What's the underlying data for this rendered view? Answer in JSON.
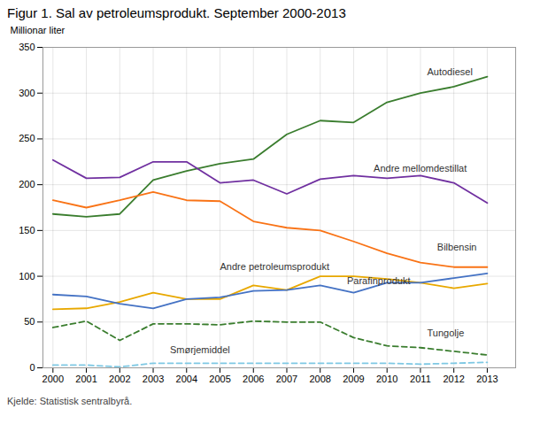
{
  "chart_data": {
    "type": "line",
    "title": "Figur 1. Sal av petroleumsprodukt. September 2000-2013",
    "ylabel": "Millionar liter",
    "caption": "Kjelde: Statistisk sentralbyrå.",
    "x": [
      2000,
      2001,
      2002,
      2003,
      2004,
      2005,
      2006,
      2007,
      2008,
      2009,
      2010,
      2011,
      2012,
      2013
    ],
    "series": [
      {
        "name": "Autodiesel",
        "color": "#3a7d2e",
        "line_style": "solid",
        "values": [
          168,
          165,
          168,
          205,
          215,
          223,
          228,
          255,
          270,
          268,
          290,
          300,
          307,
          318
        ]
      },
      {
        "name": "Andre mellomdestillat",
        "color": "#7030a0",
        "line_style": "solid",
        "values": [
          227,
          207,
          208,
          225,
          225,
          202,
          205,
          190,
          206,
          210,
          207,
          210,
          202,
          180
        ]
      },
      {
        "name": "Bilbensin",
        "color": "#f97316",
        "line_style": "solid",
        "values": [
          183,
          175,
          183,
          192,
          183,
          182,
          160,
          153,
          150,
          138,
          125,
          115,
          110,
          110
        ]
      },
      {
        "name": "Andre petroleumsprodukt",
        "color": "#e8a800",
        "line_style": "solid",
        "values": [
          64,
          65,
          72,
          82,
          75,
          75,
          90,
          85,
          100,
          100,
          97,
          93,
          87,
          92
        ]
      },
      {
        "name": "Parafinprodukt",
        "color": "#4472c4",
        "line_style": "solid",
        "values": [
          80,
          78,
          70,
          65,
          75,
          77,
          84,
          85,
          90,
          82,
          93,
          93,
          98,
          103
        ]
      },
      {
        "name": "Tungolje",
        "color": "#3a7d2e",
        "line_style": "dashed",
        "values": [
          44,
          51,
          30,
          48,
          48,
          47,
          51,
          50,
          50,
          33,
          24,
          22,
          18,
          14
        ]
      },
      {
        "name": "Smørjemiddel",
        "color": "#7ec8e3",
        "line_style": "dashed",
        "values": [
          3,
          3,
          1,
          5,
          5,
          5,
          5,
          5,
          5,
          5,
          5,
          4,
          5,
          6
        ]
      }
    ],
    "annotations": [
      {
        "text": "Autodiesel",
        "x": 2011.2,
        "y": 323
      },
      {
        "text": "Andre mellomdestillat",
        "x": 2009.6,
        "y": 218
      },
      {
        "text": "Bilbensin",
        "x": 2011.5,
        "y": 132
      },
      {
        "text": "Andre petroleumsprodukt",
        "x": 2005.0,
        "y": 110
      },
      {
        "text": "Parafinprodukt",
        "x": 2008.8,
        "y": 95
      },
      {
        "text": "Tungolje",
        "x": 2011.2,
        "y": 38
      },
      {
        "text": "Smørjemiddel",
        "x": 2003.5,
        "y": 19
      }
    ],
    "xlim": [
      1999.7,
      2013.85
    ],
    "ylim": [
      0,
      350
    ],
    "xticks": [
      2000,
      2001,
      2002,
      2003,
      2004,
      2005,
      2006,
      2007,
      2008,
      2009,
      2010,
      2011,
      2012,
      2013
    ],
    "yticks": [
      0,
      50,
      100,
      150,
      200,
      250,
      300,
      350
    ],
    "grid": true
  }
}
